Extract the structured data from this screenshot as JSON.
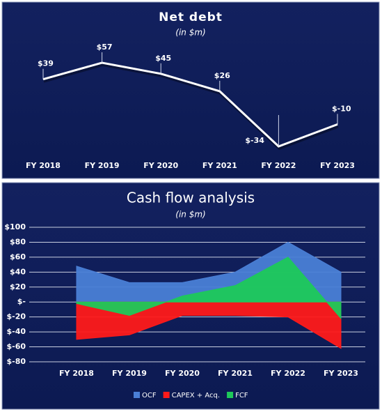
{
  "chart_data": [
    {
      "type": "line",
      "title": "Net debt",
      "subtitle": "(in $m)",
      "categories": [
        "FY 2018",
        "FY 2019",
        "FY 2020",
        "FY 2021",
        "FY 2022",
        "FY 2023"
      ],
      "values": [
        39,
        57,
        45,
        26,
        -34,
        -10
      ],
      "value_labels": [
        "$39",
        "$57",
        "$45",
        "$26",
        "$-34",
        "$-10"
      ],
      "color": "#ffffff"
    },
    {
      "type": "area",
      "title": "Cash flow analysis",
      "subtitle": "(in $m)",
      "categories": [
        "FY 2018",
        "FY 2019",
        "FY 2020",
        "FY 2021",
        "FY 2022",
        "FY 2023"
      ],
      "series": [
        {
          "name": "OCF",
          "color": "#4a7fd6",
          "values": [
            48,
            26,
            26,
            40,
            80,
            40
          ]
        },
        {
          "name": "CAPEX + Acq.",
          "color": "#ff1a1a",
          "values": [
            -50,
            -44,
            -18,
            -18,
            -20,
            -62
          ]
        },
        {
          "name": "FCF",
          "color": "#1ec95a",
          "values": [
            -2,
            -18,
            8,
            22,
            60,
            -22
          ]
        }
      ],
      "ylim": [
        -80,
        100
      ],
      "yticks": [
        {
          "value": 100,
          "label": "$100"
        },
        {
          "value": 80,
          "label": "$80"
        },
        {
          "value": 60,
          "label": "$60"
        },
        {
          "value": 40,
          "label": "$40"
        },
        {
          "value": 20,
          "label": "$20"
        },
        {
          "value": 0,
          "label": "$-"
        },
        {
          "value": -20,
          "label": "$-20"
        },
        {
          "value": -40,
          "label": "$-40"
        },
        {
          "value": -60,
          "label": "$-60"
        },
        {
          "value": -80,
          "label": "$-80"
        }
      ],
      "grid": true,
      "legend": "bottom"
    }
  ]
}
